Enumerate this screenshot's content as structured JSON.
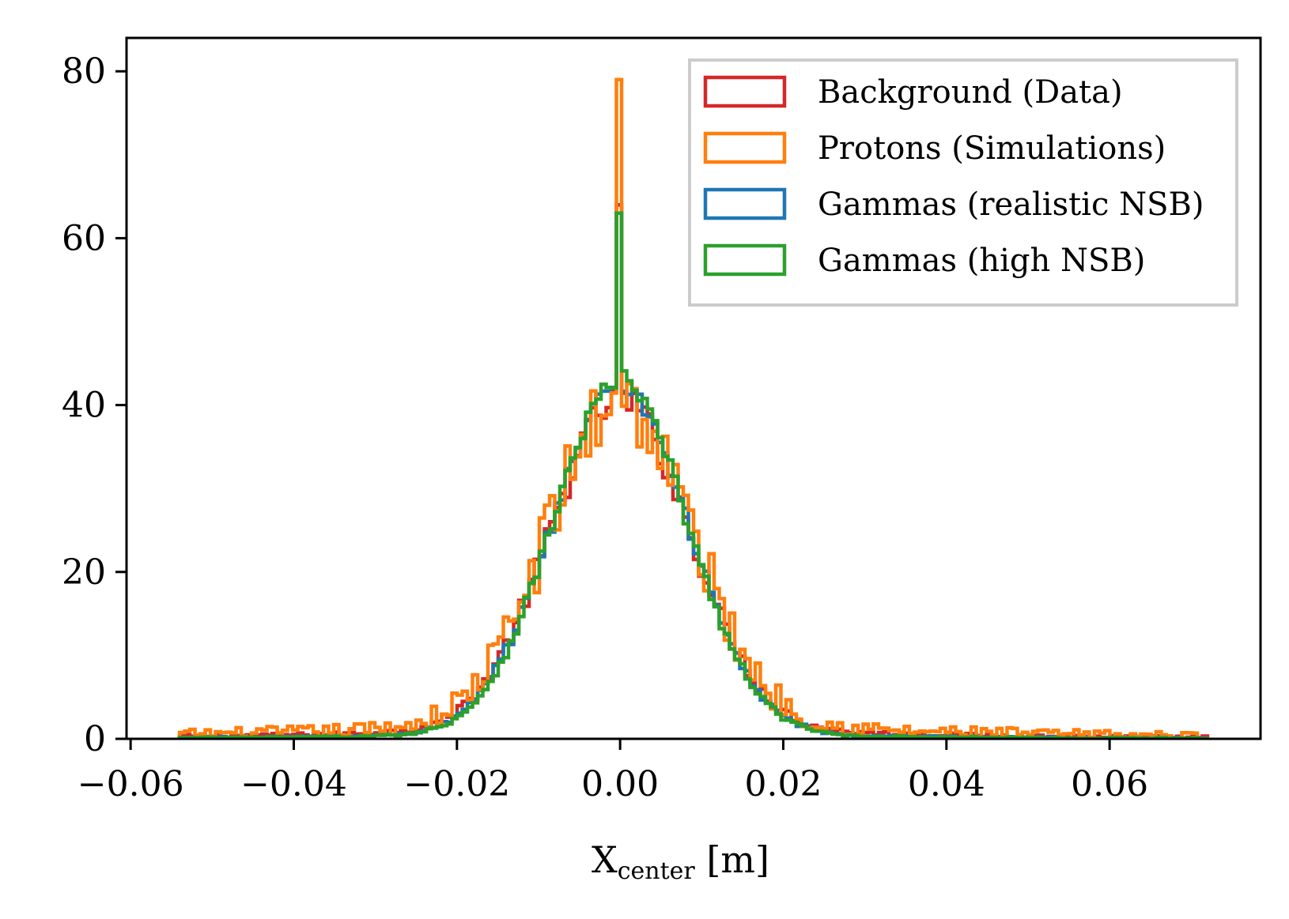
{
  "chart_data": {
    "type": "step-histogram",
    "title": "",
    "xlabel": "X",
    "xlabel_sub": "center",
    "xlabel_unit": " [m]",
    "ylabel": "",
    "xlim": [
      -0.0605,
      0.0785
    ],
    "ylim": [
      0,
      84
    ],
    "x_ticks": [
      -0.06,
      -0.04,
      -0.02,
      0.0,
      0.02,
      0.04,
      0.06
    ],
    "x_tick_labels": [
      "−0.06",
      "−0.04",
      "−0.02",
      "0.00",
      "0.02",
      "0.04",
      "0.06"
    ],
    "y_ticks": [
      0,
      20,
      40,
      60,
      80
    ],
    "y_tick_labels": [
      "0",
      "20",
      "40",
      "60",
      "80"
    ],
    "legend_position": "upper-right",
    "x_range": [
      -0.054,
      0.072
    ],
    "bins": 200,
    "series": [
      {
        "name": "Background (Data)",
        "color": "#d62728",
        "peak_x": 0.0,
        "peak_value": 64,
        "center_value": 39,
        "sigma": 0.0085,
        "tail_amplitude": 1.8,
        "tail_width": 0.03,
        "noise": 0.6
      },
      {
        "name": "Protons (Simulations)",
        "color": "#ff7f0e",
        "peak_x": 0.0,
        "peak_value": 79,
        "center_value": 38,
        "sigma": 0.0088,
        "tail_amplitude": 2.6,
        "tail_width": 0.035,
        "noise": 1.5
      },
      {
        "name": "Gammas (realistic NSB)",
        "color": "#1f77b4",
        "peak_x": 0.0,
        "peak_value": 63,
        "center_value": 41.5,
        "sigma": 0.0083,
        "tail_amplitude": 1.1,
        "tail_width": 0.025,
        "noise": 0.4
      },
      {
        "name": "Gammas (high NSB)",
        "color": "#2ca02c",
        "peak_x": 0.0,
        "peak_value": 63,
        "center_value": 42,
        "sigma": 0.0082,
        "tail_amplitude": 1.0,
        "tail_width": 0.024,
        "noise": 0.35
      }
    ]
  }
}
